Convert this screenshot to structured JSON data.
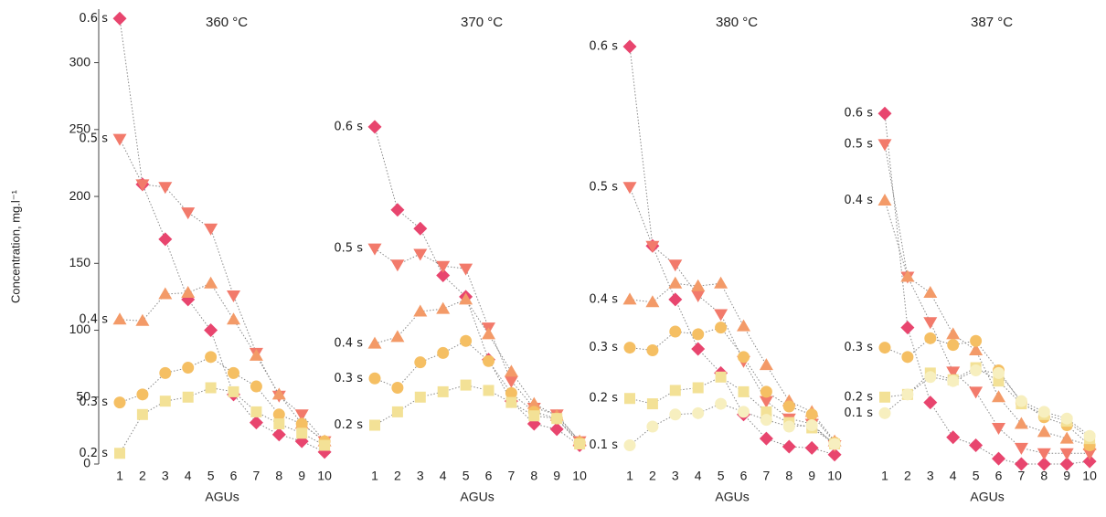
{
  "chart_data": [
    {
      "type": "line",
      "title": "360 °C",
      "x_label": "AGUs",
      "y_label": "Concentration, mg.l⁻¹",
      "categories": [
        "1",
        "2",
        "3",
        "4",
        "5",
        "6",
        "7",
        "8",
        "9",
        "10"
      ],
      "ylim": [
        0,
        340
      ],
      "yticks": [
        0,
        50,
        100,
        150,
        200,
        250,
        300
      ],
      "series": [
        {
          "name": "0.6 s",
          "color": "#e8456e",
          "marker": "diamond",
          "values": [
            333,
            209,
            168,
            123,
            100,
            52,
            31,
            22,
            17,
            9
          ]
        },
        {
          "name": "0.5 s",
          "color": "#f27a6b",
          "marker": "triangle-down",
          "values": [
            243,
            209,
            207,
            188,
            176,
            126,
            83,
            51,
            37,
            17
          ]
        },
        {
          "name": "0.4 s",
          "color": "#f39a68",
          "marker": "triangle-up",
          "values": [
            108,
            107,
            127,
            128,
            135,
            108,
            81,
            52,
            30,
            17
          ]
        },
        {
          "name": "0.3 s",
          "color": "#f5bf63",
          "marker": "circle",
          "values": [
            46,
            52,
            68,
            72,
            80,
            68,
            58,
            37,
            30,
            17
          ]
        },
        {
          "name": "0.2 s",
          "color": "#f3e196",
          "marker": "square",
          "values": [
            8,
            37,
            47,
            50,
            57,
            54,
            39,
            30,
            23,
            14
          ]
        }
      ]
    },
    {
      "type": "line",
      "title": "370 °C",
      "x_label": "AGUs",
      "categories": [
        "1",
        "2",
        "3",
        "4",
        "5",
        "6",
        "7",
        "8",
        "9",
        "10"
      ],
      "ylim": [
        0,
        340
      ],
      "series": [
        {
          "name": "0.6 s",
          "color": "#e8456e",
          "marker": "diamond",
          "values": [
            252,
            190,
            176,
            141,
            125,
            78,
            47,
            30,
            26,
            14
          ]
        },
        {
          "name": "0.5 s",
          "color": "#f27a6b",
          "marker": "triangle-down",
          "values": [
            161,
            149,
            157,
            148,
            146,
            102,
            62,
            42,
            37,
            17
          ]
        },
        {
          "name": "0.4 s",
          "color": "#f39a68",
          "marker": "triangle-up",
          "values": [
            90,
            95,
            114,
            116,
            123,
            97,
            69,
            45,
            36,
            17
          ]
        },
        {
          "name": "0.3 s",
          "color": "#f5bf63",
          "marker": "circle",
          "values": [
            64,
            57,
            76,
            83,
            92,
            77,
            53,
            39,
            34,
            16
          ]
        },
        {
          "name": "0.2 s",
          "color": "#f3e196",
          "marker": "square",
          "values": [
            29,
            39,
            50,
            54,
            59,
            55,
            46,
            36,
            34,
            15
          ]
        }
      ]
    },
    {
      "type": "line",
      "title": "380 °C",
      "x_label": "AGUs",
      "categories": [
        "1",
        "2",
        "3",
        "4",
        "5",
        "6",
        "7",
        "8",
        "9",
        "10"
      ],
      "ylim": [
        0,
        340
      ],
      "series": [
        {
          "name": "0.6 s",
          "color": "#e8456e",
          "marker": "diamond",
          "values": [
            312,
            163,
            123,
            86,
            68,
            37,
            19,
            13,
            12,
            7
          ]
        },
        {
          "name": "0.5 s",
          "color": "#f27a6b",
          "marker": "triangle-down",
          "values": [
            207,
            163,
            149,
            126,
            112,
            77,
            47,
            34,
            30,
            14
          ]
        },
        {
          "name": "0.4 s",
          "color": "#f39a68",
          "marker": "triangle-up",
          "values": [
            123,
            121,
            135,
            133,
            135,
            103,
            74,
            47,
            39,
            17
          ]
        },
        {
          "name": "0.3 s",
          "color": "#f5bf63",
          "marker": "circle",
          "values": [
            87,
            85,
            99,
            97,
            102,
            80,
            54,
            43,
            37,
            16
          ]
        },
        {
          "name": "0.2 s",
          "color": "#f3e196",
          "marker": "square",
          "values": [
            49,
            45,
            55,
            57,
            65,
            54,
            39,
            31,
            27,
            15
          ]
        },
        {
          "name": "0.1 s",
          "color": "#f7efbf",
          "marker": "circle",
          "values": [
            14,
            28,
            37,
            38,
            45,
            39,
            33,
            28,
            29,
            15
          ]
        }
      ]
    },
    {
      "type": "line",
      "title": "387 °C",
      "x_label": "AGUs",
      "categories": [
        "1",
        "2",
        "3",
        "4",
        "5",
        "6",
        "7",
        "8",
        "9",
        "10"
      ],
      "ylim": [
        0,
        340
      ],
      "series": [
        {
          "name": "0.6 s",
          "color": "#e8456e",
          "marker": "diamond",
          "values": [
            262,
            102,
            46,
            20,
            14,
            4,
            0,
            0,
            0,
            2
          ]
        },
        {
          "name": "0.5 s",
          "color": "#f27a6b",
          "marker": "triangle-down",
          "values": [
            239,
            140,
            106,
            69,
            54,
            27,
            12,
            8,
            8,
            8
          ]
        },
        {
          "name": "0.4 s",
          "color": "#f39a68",
          "marker": "triangle-up",
          "values": [
            197,
            140,
            128,
            97,
            85,
            50,
            30,
            24,
            19,
            14
          ]
        },
        {
          "name": "0.3 s",
          "color": "#f5bf63",
          "marker": "circle",
          "values": [
            87,
            80,
            94,
            89,
            92,
            70,
            46,
            35,
            29,
            14
          ]
        },
        {
          "name": "0.2 s",
          "color": "#f3e196",
          "marker": "square",
          "values": [
            50,
            52,
            68,
            63,
            72,
            62,
            45,
            37,
            32,
            19
          ]
        },
        {
          "name": "0.1 s",
          "color": "#f7efbf",
          "marker": "circle",
          "values": [
            38,
            52,
            65,
            62,
            70,
            68,
            47,
            39,
            34,
            21
          ]
        }
      ]
    }
  ]
}
